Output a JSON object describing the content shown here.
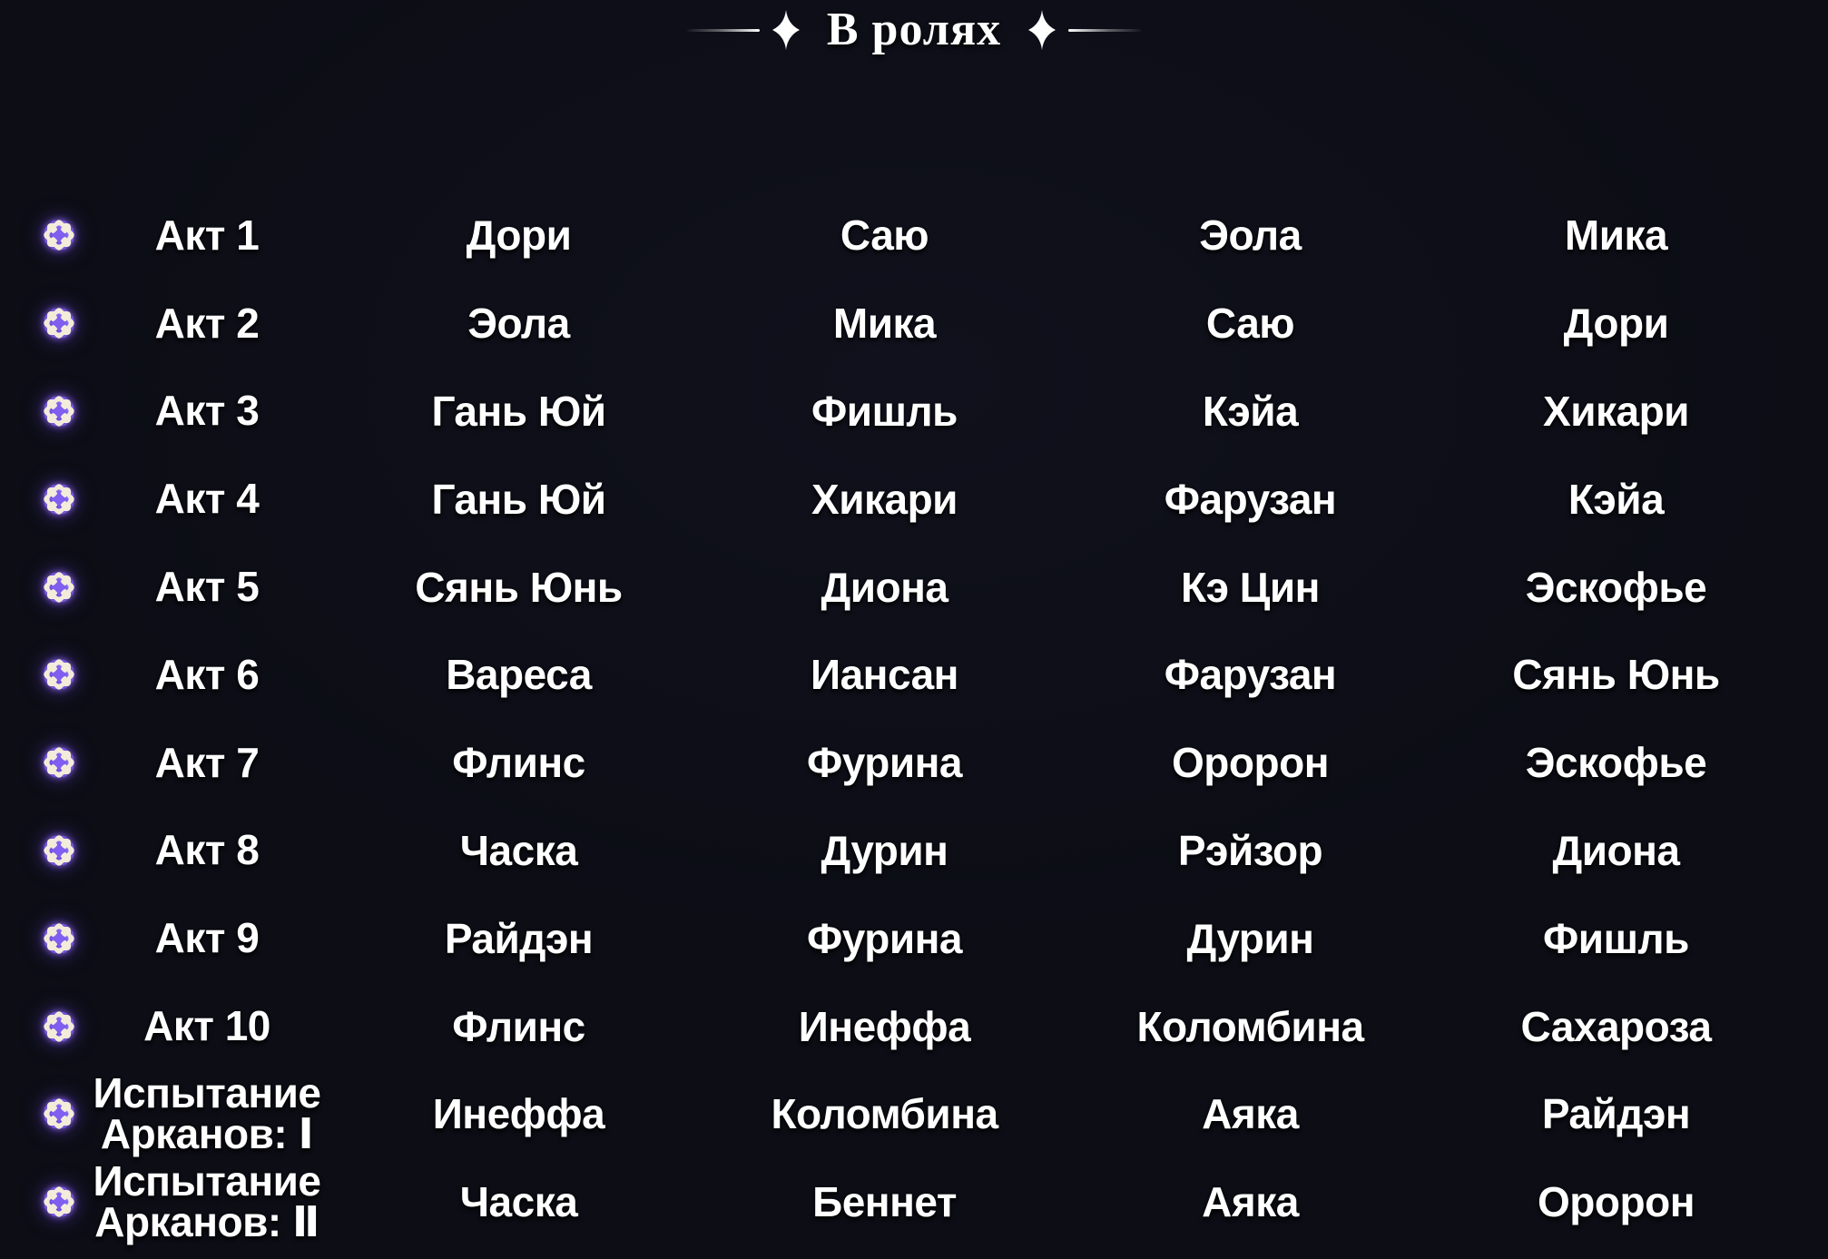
{
  "page": {
    "background_color": "#0c0d16",
    "text_color": "#ffffff"
  },
  "header": {
    "title": "В ролях"
  },
  "icons": {
    "sparkle": "✦ four-pointed sparkle, white",
    "row_marker": "❋ eight-pointed star-flower, purple glow with cream star and violet core"
  },
  "colors": {
    "icon_outer_purple": "#7557d8",
    "icon_cream": "#f3ecdb",
    "icon_core_violet_light": "#8d72f2",
    "icon_core_violet_dark": "#6847d8",
    "decor_line_white": "#ffffff"
  },
  "cast_table": {
    "rows": [
      {
        "act_lines": [
          "Акт 1"
        ],
        "names": [
          "Дори",
          "Саю",
          "Эола",
          "Мика"
        ]
      },
      {
        "act_lines": [
          "Акт 2"
        ],
        "names": [
          "Эола",
          "Мика",
          "Саю",
          "Дори"
        ]
      },
      {
        "act_lines": [
          "Акт 3"
        ],
        "names": [
          "Гань Юй",
          "Фишль",
          "Кэйа",
          "Хикари"
        ]
      },
      {
        "act_lines": [
          "Акт 4"
        ],
        "names": [
          "Гань Юй",
          "Хикари",
          "Фарузан",
          "Кэйа"
        ]
      },
      {
        "act_lines": [
          "Акт 5"
        ],
        "names": [
          "Сянь Юнь",
          "Диона",
          "Кэ Цин",
          "Эскофье"
        ]
      },
      {
        "act_lines": [
          "Акт 6"
        ],
        "names": [
          "Вареса",
          "Иансан",
          "Фарузан",
          "Сянь Юнь"
        ]
      },
      {
        "act_lines": [
          "Акт 7"
        ],
        "names": [
          "Флинс",
          "Фурина",
          "Оророн",
          "Эскофье"
        ]
      },
      {
        "act_lines": [
          "Акт 8"
        ],
        "names": [
          "Часка",
          "Дурин",
          "Рэйзор",
          "Диона"
        ]
      },
      {
        "act_lines": [
          "Акт 9"
        ],
        "names": [
          "Райдэн",
          "Фурина",
          "Дурин",
          "Фишль"
        ]
      },
      {
        "act_lines": [
          "Акт 10"
        ],
        "names": [
          "Флинс",
          "Инеффа",
          "Коломбина",
          "Сахароза"
        ]
      },
      {
        "act_lines": [
          "Испытание",
          "Арканов: Ⅰ"
        ],
        "names": [
          "Инеффа",
          "Коломбина",
          "Аяка",
          "Райдэн"
        ]
      },
      {
        "act_lines": [
          "Испытание",
          "Арканов: Ⅱ"
        ],
        "names": [
          "Часка",
          "Беннет",
          "Аяка",
          "Оророн"
        ]
      }
    ]
  }
}
